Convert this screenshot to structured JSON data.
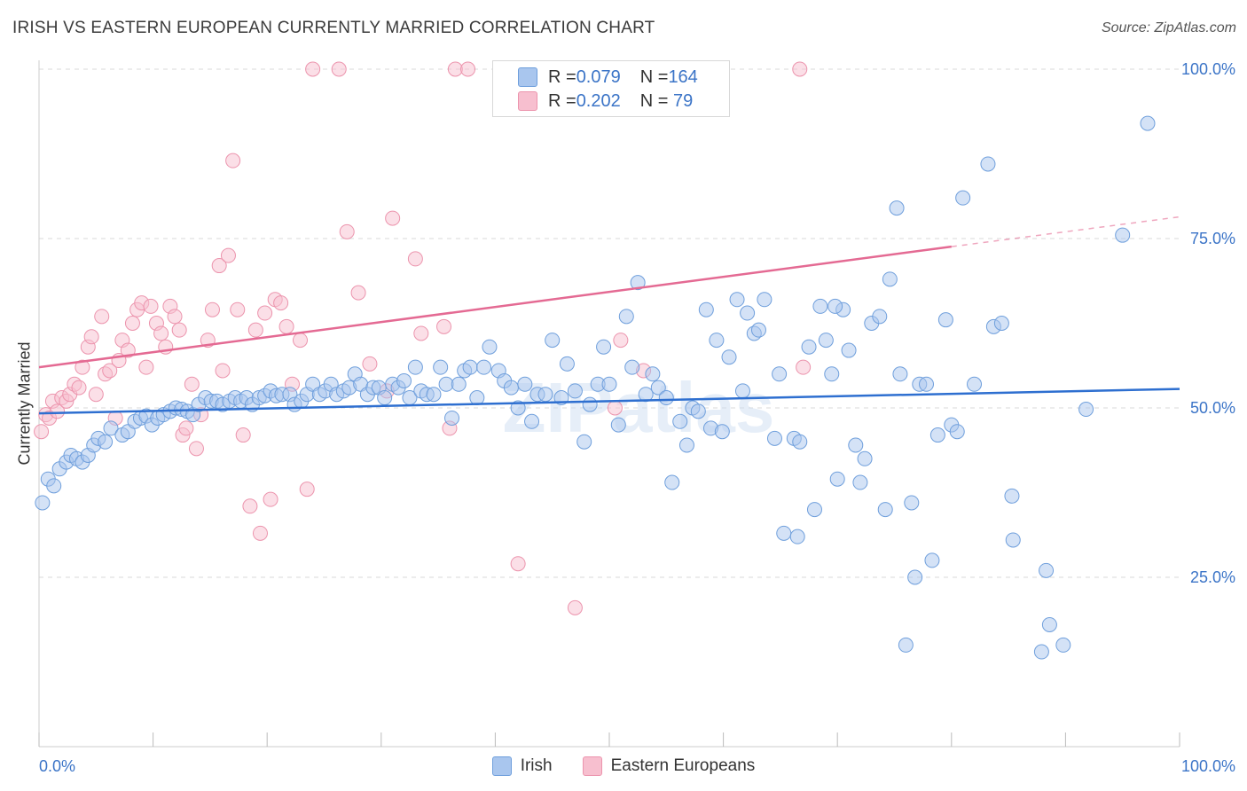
{
  "header": {
    "title": "IRISH VS EASTERN EUROPEAN CURRENTLY MARRIED CORRELATION CHART",
    "source": "Source: ZipAtlas.com"
  },
  "legend": {
    "rows": [
      {
        "r_label": "R = ",
        "r_value": "0.079",
        "n_label": "N = ",
        "n_value": "164"
      },
      {
        "r_label": "R = ",
        "r_value": "0.202",
        "n_label": "N = ",
        "n_value": " 79"
      }
    ]
  },
  "colors": {
    "irish_fill": "#a9c6ee",
    "irish_stroke": "#6f9fdc",
    "irish_line": "#2e6fd0",
    "eastern_fill": "#f7bfcf",
    "eastern_stroke": "#ec94ad",
    "eastern_line": "#e46a93",
    "tick_label": "#3b74c7",
    "grid": "#d9d9d9"
  },
  "watermark": "ZIPatlas",
  "chart_data": {
    "type": "scatter",
    "title": "IRISH VS EASTERN EUROPEAN CURRENTLY MARRIED CORRELATION CHART",
    "xlabel": "",
    "ylabel": "Currently Married",
    "xlim": [
      0,
      100
    ],
    "ylim": [
      0,
      105
    ],
    "x_tick_labels": [
      "0.0%",
      "100.0%"
    ],
    "y_ticks": [
      25,
      50,
      75,
      100
    ],
    "y_tick_labels": [
      "25.0%",
      "50.0%",
      "75.0%",
      "100.0%"
    ],
    "grid": true,
    "legend_position": "top-center",
    "series": [
      {
        "name": "Irish",
        "r": 0.079,
        "n": 164,
        "trend": {
          "x0": 0,
          "y0": 49.2,
          "x1": 100,
          "y1": 52.8
        },
        "points": [
          [
            0.3,
            36.0
          ],
          [
            0.8,
            39.5
          ],
          [
            1.3,
            38.5
          ],
          [
            1.8,
            41.0
          ],
          [
            2.4,
            42.0
          ],
          [
            2.8,
            43.0
          ],
          [
            3.3,
            42.5
          ],
          [
            3.8,
            42.0
          ],
          [
            4.3,
            43.0
          ],
          [
            4.8,
            44.5
          ],
          [
            5.2,
            45.5
          ],
          [
            5.8,
            45.0
          ],
          [
            6.3,
            47.0
          ],
          [
            7.3,
            46.0
          ],
          [
            7.8,
            46.5
          ],
          [
            8.4,
            48.0
          ],
          [
            8.9,
            48.5
          ],
          [
            9.4,
            48.8
          ],
          [
            9.9,
            47.5
          ],
          [
            10.4,
            48.5
          ],
          [
            10.9,
            49.0
          ],
          [
            11.5,
            49.5
          ],
          [
            12.0,
            50.0
          ],
          [
            12.5,
            49.8
          ],
          [
            13.0,
            49.5
          ],
          [
            13.5,
            49.0
          ],
          [
            14.0,
            50.5
          ],
          [
            14.6,
            51.5
          ],
          [
            15.1,
            51.0
          ],
          [
            15.6,
            51.0
          ],
          [
            16.1,
            50.5
          ],
          [
            16.7,
            51.0
          ],
          [
            17.2,
            51.5
          ],
          [
            17.7,
            51.0
          ],
          [
            18.2,
            51.5
          ],
          [
            18.7,
            50.5
          ],
          [
            19.3,
            51.5
          ],
          [
            19.8,
            51.8
          ],
          [
            20.3,
            52.5
          ],
          [
            20.8,
            51.8
          ],
          [
            21.3,
            52.0
          ],
          [
            22.0,
            52.0
          ],
          [
            22.4,
            50.5
          ],
          [
            23.0,
            51.0
          ],
          [
            23.5,
            52.0
          ],
          [
            24.0,
            53.5
          ],
          [
            24.6,
            52.0
          ],
          [
            25.1,
            52.5
          ],
          [
            25.6,
            53.5
          ],
          [
            26.1,
            52.0
          ],
          [
            26.7,
            52.5
          ],
          [
            27.2,
            53.0
          ],
          [
            27.7,
            55.0
          ],
          [
            28.2,
            53.5
          ],
          [
            28.8,
            52.0
          ],
          [
            29.3,
            53.0
          ],
          [
            29.8,
            53.0
          ],
          [
            30.3,
            51.5
          ],
          [
            31.0,
            53.5
          ],
          [
            31.5,
            53.0
          ],
          [
            32.0,
            54.0
          ],
          [
            32.5,
            51.5
          ],
          [
            33.0,
            56.0
          ],
          [
            33.5,
            52.5
          ],
          [
            34.0,
            52.0
          ],
          [
            34.6,
            52.0
          ],
          [
            35.2,
            56.0
          ],
          [
            35.7,
            53.5
          ],
          [
            36.2,
            48.5
          ],
          [
            36.8,
            53.5
          ],
          [
            37.3,
            55.5
          ],
          [
            37.8,
            56.0
          ],
          [
            38.4,
            51.5
          ],
          [
            39.0,
            56.0
          ],
          [
            39.5,
            59.0
          ],
          [
            40.3,
            55.5
          ],
          [
            40.8,
            54.0
          ],
          [
            41.4,
            53.0
          ],
          [
            42.0,
            50.0
          ],
          [
            42.6,
            53.5
          ],
          [
            43.2,
            48.0
          ],
          [
            43.7,
            52.0
          ],
          [
            44.4,
            52.0
          ],
          [
            45.0,
            60.0
          ],
          [
            45.8,
            51.5
          ],
          [
            46.3,
            56.5
          ],
          [
            47.0,
            52.5
          ],
          [
            47.8,
            45.0
          ],
          [
            48.3,
            50.5
          ],
          [
            49.0,
            53.5
          ],
          [
            49.5,
            59.0
          ],
          [
            50.0,
            53.5
          ],
          [
            50.8,
            47.5
          ],
          [
            51.5,
            63.5
          ],
          [
            52.0,
            56.0
          ],
          [
            52.5,
            68.5
          ],
          [
            53.2,
            52.0
          ],
          [
            53.8,
            55.0
          ],
          [
            54.3,
            53.0
          ],
          [
            55.0,
            51.5
          ],
          [
            55.5,
            39.0
          ],
          [
            56.2,
            48.0
          ],
          [
            56.8,
            44.5
          ],
          [
            57.3,
            50.0
          ],
          [
            57.8,
            49.5
          ],
          [
            58.5,
            64.5
          ],
          [
            58.9,
            47.0
          ],
          [
            59.4,
            60.0
          ],
          [
            59.9,
            46.5
          ],
          [
            60.5,
            57.5
          ],
          [
            61.2,
            66.0
          ],
          [
            61.7,
            52.5
          ],
          [
            62.1,
            64.0
          ],
          [
            62.7,
            61.0
          ],
          [
            63.1,
            61.5
          ],
          [
            63.6,
            66.0
          ],
          [
            64.5,
            45.5
          ],
          [
            64.9,
            55.0
          ],
          [
            65.3,
            31.5
          ],
          [
            66.2,
            45.5
          ],
          [
            66.5,
            31.0
          ],
          [
            66.7,
            45.0
          ],
          [
            67.5,
            59.0
          ],
          [
            68.0,
            35.0
          ],
          [
            68.5,
            65.0
          ],
          [
            69.0,
            60.0
          ],
          [
            69.5,
            55.0
          ],
          [
            70.0,
            39.5
          ],
          [
            70.5,
            64.5
          ],
          [
            71.0,
            58.5
          ],
          [
            71.6,
            44.5
          ],
          [
            72.0,
            39.0
          ],
          [
            72.4,
            42.5
          ],
          [
            73.0,
            62.5
          ],
          [
            73.7,
            63.5
          ],
          [
            74.2,
            35.0
          ],
          [
            74.6,
            69.0
          ],
          [
            75.2,
            79.5
          ],
          [
            75.5,
            55.0
          ],
          [
            76.0,
            15.0
          ],
          [
            76.5,
            36.0
          ],
          [
            76.8,
            25.0
          ],
          [
            77.2,
            53.5
          ],
          [
            77.8,
            53.5
          ],
          [
            78.3,
            27.5
          ],
          [
            78.8,
            46.0
          ],
          [
            79.5,
            63.0
          ],
          [
            80.0,
            47.5
          ],
          [
            80.5,
            46.5
          ],
          [
            81.0,
            81.0
          ],
          [
            82.0,
            53.5
          ],
          [
            83.2,
            86.0
          ],
          [
            83.7,
            62.0
          ],
          [
            84.4,
            62.5
          ],
          [
            85.3,
            37.0
          ],
          [
            85.4,
            30.5
          ],
          [
            87.9,
            14.0
          ],
          [
            88.3,
            26.0
          ],
          [
            88.6,
            18.0
          ],
          [
            89.8,
            15.0
          ],
          [
            97.2,
            92.0
          ],
          [
            91.8,
            49.8
          ],
          [
            95.0,
            75.5
          ],
          [
            69.8,
            65.0
          ]
        ]
      },
      {
        "name": "Eastern Europeans",
        "r": 0.202,
        "n": 79,
        "trend": {
          "x0": 0,
          "y0": 56.0,
          "x1": 80,
          "y1": 73.8,
          "dash_x1": 100,
          "dash_y1": 78.2
        },
        "points": [
          [
            0.2,
            46.5
          ],
          [
            0.6,
            49.0
          ],
          [
            0.9,
            48.5
          ],
          [
            1.2,
            51.0
          ],
          [
            1.6,
            49.5
          ],
          [
            2.0,
            51.5
          ],
          [
            2.4,
            51.0
          ],
          [
            2.7,
            52.0
          ],
          [
            3.1,
            53.5
          ],
          [
            3.5,
            53.0
          ],
          [
            3.8,
            56.0
          ],
          [
            4.3,
            59.0
          ],
          [
            4.6,
            60.5
          ],
          [
            5.0,
            52.0
          ],
          [
            5.5,
            63.5
          ],
          [
            5.8,
            55.0
          ],
          [
            6.2,
            55.5
          ],
          [
            6.7,
            48.5
          ],
          [
            7.0,
            57.0
          ],
          [
            7.3,
            60.0
          ],
          [
            7.8,
            58.5
          ],
          [
            8.2,
            62.5
          ],
          [
            8.6,
            64.5
          ],
          [
            9.0,
            65.5
          ],
          [
            9.4,
            56.0
          ],
          [
            9.8,
            65.0
          ],
          [
            10.3,
            62.5
          ],
          [
            10.7,
            61.0
          ],
          [
            11.1,
            59.0
          ],
          [
            11.5,
            65.0
          ],
          [
            11.9,
            63.5
          ],
          [
            12.3,
            61.5
          ],
          [
            12.6,
            46.0
          ],
          [
            12.9,
            47.0
          ],
          [
            13.4,
            53.5
          ],
          [
            13.8,
            44.0
          ],
          [
            14.2,
            49.0
          ],
          [
            14.8,
            60.0
          ],
          [
            15.2,
            64.5
          ],
          [
            15.8,
            71.0
          ],
          [
            16.1,
            55.5
          ],
          [
            16.6,
            72.5
          ],
          [
            17.0,
            86.5
          ],
          [
            17.4,
            64.5
          ],
          [
            17.9,
            46.0
          ],
          [
            18.5,
            35.5
          ],
          [
            19.0,
            61.5
          ],
          [
            19.4,
            31.5
          ],
          [
            19.8,
            64.0
          ],
          [
            20.3,
            36.5
          ],
          [
            20.7,
            66.0
          ],
          [
            21.2,
            65.5
          ],
          [
            21.7,
            62.0
          ],
          [
            22.2,
            53.5
          ],
          [
            22.9,
            60.0
          ],
          [
            23.5,
            38.0
          ],
          [
            24.0,
            100.0
          ],
          [
            26.3,
            100.0
          ],
          [
            29.0,
            56.5
          ],
          [
            30.5,
            52.5
          ],
          [
            33.5,
            61.0
          ],
          [
            35.5,
            62.0
          ],
          [
            36.0,
            47.0
          ],
          [
            36.5,
            100.0
          ],
          [
            37.6,
            100.0
          ],
          [
            40.5,
            100.0
          ],
          [
            42.0,
            27.0
          ],
          [
            44.5,
            100.0
          ],
          [
            47.0,
            20.5
          ],
          [
            50.5,
            50.0
          ],
          [
            51.0,
            60.0
          ],
          [
            52.5,
            100.0
          ],
          [
            53.0,
            55.5
          ],
          [
            66.7,
            100.0
          ],
          [
            27.0,
            76.0
          ],
          [
            33.0,
            72.0
          ],
          [
            31.0,
            78.0
          ],
          [
            28.0,
            67.0
          ],
          [
            67.0,
            56.0
          ]
        ]
      }
    ]
  }
}
